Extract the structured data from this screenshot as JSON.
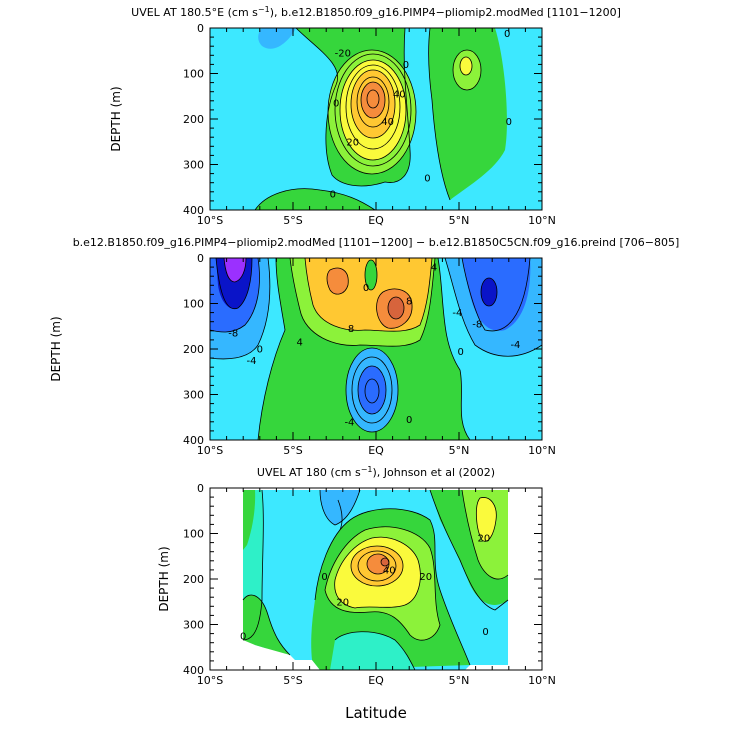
{
  "figure": {
    "xlabel": "Latitude",
    "ylabel_text": "DEPTH",
    "ylabel_unit": "(m)",
    "x_ticks": [
      "10°S",
      "5°S",
      "EQ",
      "5°N",
      "10°N"
    ],
    "y_ticks": [
      "0",
      "100",
      "200",
      "300",
      "400"
    ]
  },
  "colors": {
    "purple": "#9b30ff",
    "deep_blue": "#0a14c8",
    "blue": "#2a6cff",
    "light_blue": "#35b7ff",
    "cyan": "#3de8ff",
    "aqua": "#2ef0c8",
    "green": "#36d63c",
    "light_green": "#8cf23a",
    "yellow": "#fafa3c",
    "gold": "#ffc832",
    "orange": "#f58c3c",
    "dark_orange": "#d7643c",
    "missing": "#ffffff"
  },
  "chart_data": [
    {
      "type": "heatmap",
      "title_main": "UVEL AT 180.5°E (cm s",
      "title_sup": "−1",
      "title_rest": "), b.e12.B1850.f09_g16.PIMP4−pliomip2.modMed [1101−1200]",
      "xlim": [
        -10,
        10
      ],
      "ylim": [
        400,
        0
      ],
      "contour_labels": [
        {
          "text": "-20",
          "x": -2.0,
          "y": 55
        },
        {
          "text": "0",
          "x": 1.8,
          "y": 80
        },
        {
          "text": "0",
          "x": 7.9,
          "y": 12
        },
        {
          "text": "0",
          "x": -2.4,
          "y": 165
        },
        {
          "text": "40",
          "x": 1.4,
          "y": 145
        },
        {
          "text": "40",
          "x": 0.7,
          "y": 205
        },
        {
          "text": "20",
          "x": -1.4,
          "y": 250
        },
        {
          "text": "0",
          "x": 8.0,
          "y": 205
        },
        {
          "text": "0",
          "x": -2.6,
          "y": 365
        },
        {
          "text": "0",
          "x": 3.1,
          "y": 330
        }
      ]
    },
    {
      "type": "heatmap",
      "title_main": "b.e12.B1850.f09_g16.PIMP4−pliomip2.modMed [1101−1200] − b.e12.B1850C5CN.f09_g16.preind [706−805]",
      "xlim": [
        -10,
        10
      ],
      "ylim": [
        400,
        0
      ],
      "contour_labels": [
        {
          "text": "4",
          "x": 3.5,
          "y": 20
        },
        {
          "text": "0",
          "x": -0.6,
          "y": 65
        },
        {
          "text": "-4",
          "x": 4.9,
          "y": 120
        },
        {
          "text": "8",
          "x": 2.0,
          "y": 95
        },
        {
          "text": "8",
          "x": -1.5,
          "y": 155
        },
        {
          "text": "-8",
          "x": 6.1,
          "y": 145
        },
        {
          "text": "-8",
          "x": -8.6,
          "y": 165
        },
        {
          "text": "4",
          "x": -4.6,
          "y": 185
        },
        {
          "text": "-4",
          "x": -7.5,
          "y": 225
        },
        {
          "text": "0",
          "x": -7.0,
          "y": 200
        },
        {
          "text": "-4",
          "x": 8.4,
          "y": 190
        },
        {
          "text": "0",
          "x": 5.1,
          "y": 205
        },
        {
          "text": "-4",
          "x": -1.6,
          "y": 360
        },
        {
          "text": "0",
          "x": 2.0,
          "y": 355
        }
      ]
    },
    {
      "type": "heatmap",
      "title_main": "UVEL AT 180 (cm s",
      "title_sup": "−1",
      "title_rest": "), Johnson et al (2002)",
      "xlim": [
        -10,
        10
      ],
      "ylim": [
        400,
        0
      ],
      "contour_labels": [
        {
          "text": "20",
          "x": 6.5,
          "y": 110
        },
        {
          "text": "0",
          "x": -3.1,
          "y": 195
        },
        {
          "text": "40",
          "x": 0.8,
          "y": 180
        },
        {
          "text": "20",
          "x": 3.0,
          "y": 195
        },
        {
          "text": "20",
          "x": -2.0,
          "y": 250
        },
        {
          "text": "0",
          "x": 6.6,
          "y": 315
        },
        {
          "text": "0",
          "x": -8.0,
          "y": 325
        }
      ]
    }
  ]
}
